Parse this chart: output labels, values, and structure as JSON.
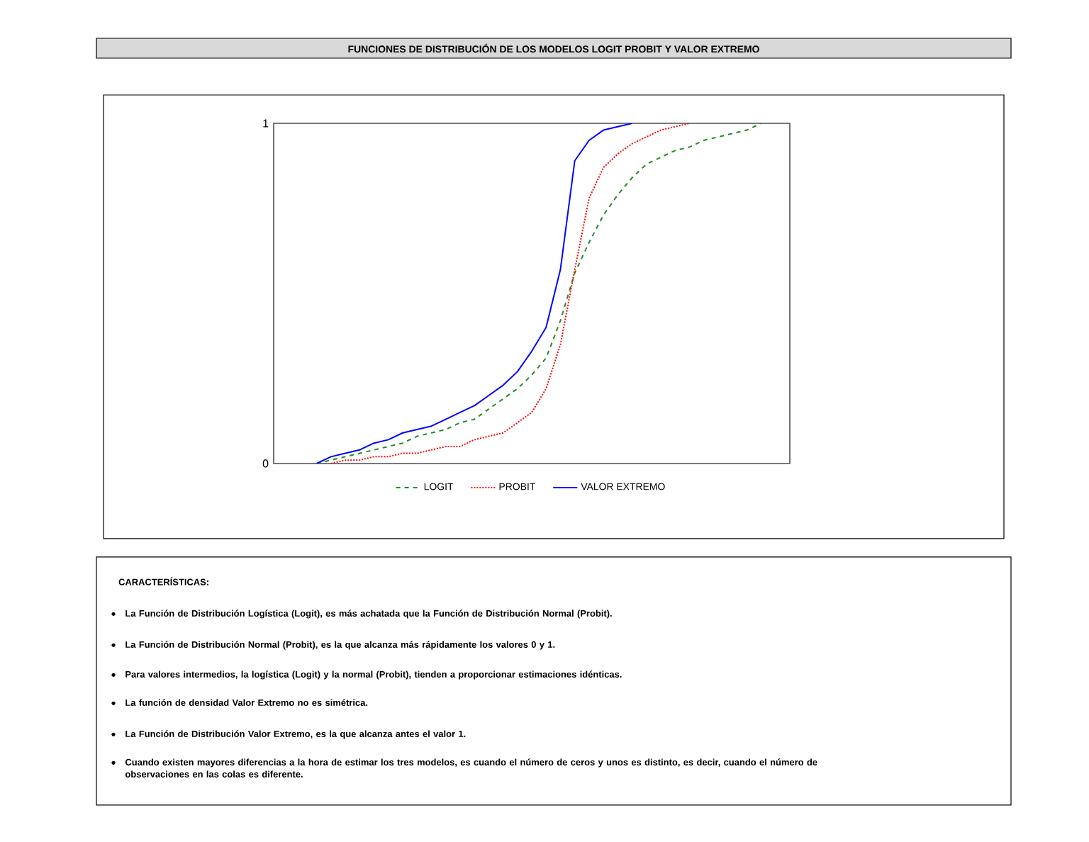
{
  "chart_data": {
    "type": "line",
    "title": "FUNCIONES DE DISTRIBUCIÓN DE LOS MODELOS LOGIT PROBIT Y VALOR EXTREMO",
    "categories": [
      null,
      null,
      null,
      null,
      null,
      null,
      null,
      null,
      null,
      null,
      null,
      null,
      null,
      null,
      null,
      null,
      null,
      null,
      null,
      null,
      null,
      null,
      null,
      null,
      null,
      null,
      null,
      null,
      null,
      null,
      null,
      null,
      null,
      null,
      null,
      null,
      null
    ],
    "series": [
      {
        "name": "LOGIT",
        "color": "#228b22",
        "line_style": "dashed",
        "values": [
          null,
          null,
          null,
          0.0,
          0.01,
          0.02,
          0.03,
          0.04,
          0.05,
          0.06,
          0.08,
          0.09,
          0.1,
          0.12,
          0.13,
          0.16,
          0.19,
          0.22,
          0.26,
          0.31,
          0.42,
          0.56,
          0.65,
          0.73,
          0.79,
          0.84,
          0.88,
          0.9,
          0.92,
          0.93,
          0.95,
          0.96,
          0.97,
          0.98,
          1.0,
          null,
          null
        ]
      },
      {
        "name": "PROBIT",
        "color": "#ff0000",
        "line_style": "dotted",
        "values": [
          null,
          null,
          null,
          null,
          0.0,
          0.01,
          0.01,
          0.02,
          0.02,
          0.03,
          0.03,
          0.04,
          0.05,
          0.05,
          0.07,
          0.08,
          0.09,
          0.12,
          0.15,
          0.22,
          0.35,
          0.57,
          0.78,
          0.87,
          0.91,
          0.94,
          0.96,
          0.98,
          0.99,
          1.0,
          null,
          null,
          null,
          null,
          null,
          null,
          null
        ]
      },
      {
        "name": "VALOR EXTREMO",
        "color": "#0000ff",
        "line_style": "solid",
        "values": [
          null,
          null,
          null,
          0.0,
          0.02,
          0.03,
          0.04,
          0.06,
          0.07,
          0.09,
          0.1,
          0.11,
          0.13,
          0.15,
          0.17,
          0.2,
          0.23,
          0.27,
          0.33,
          0.4,
          0.57,
          0.89,
          0.95,
          0.98,
          0.99,
          1.0,
          null,
          null,
          null,
          null,
          null,
          null,
          null,
          null,
          null,
          null,
          null
        ]
      }
    ],
    "ylim": [
      0,
      1
    ],
    "yticks": [
      0,
      1
    ],
    "grid": false,
    "legend": "bottom",
    "marker": "none",
    "annotations": [
      "CARACTERÍSTICAS:",
      "La Función de Distribución Logística (Logit), es más achatada que la Función de Distribución Normal (Probit).",
      "La Función de Distribución Normal (Probit), es la que alcanza más rápidamente los valores 0 y 1.",
      "Para valores intermedios, la logística (Logit) y la normal (Probit),  tienden a proporcionar estimaciones idénticas.",
      "La función de densidad Valor Extremo no es simétrica.",
      "La Función de Distribución Valor Extremo, es la que alcanza antes el valor 1.",
      "Cuando existen mayores diferencias a la hora de estimar los tres modelos, es cuando el número de  ceros y unos es distinto, es decir, cuando el número de observaciones en las colas es diferente."
    ]
  }
}
